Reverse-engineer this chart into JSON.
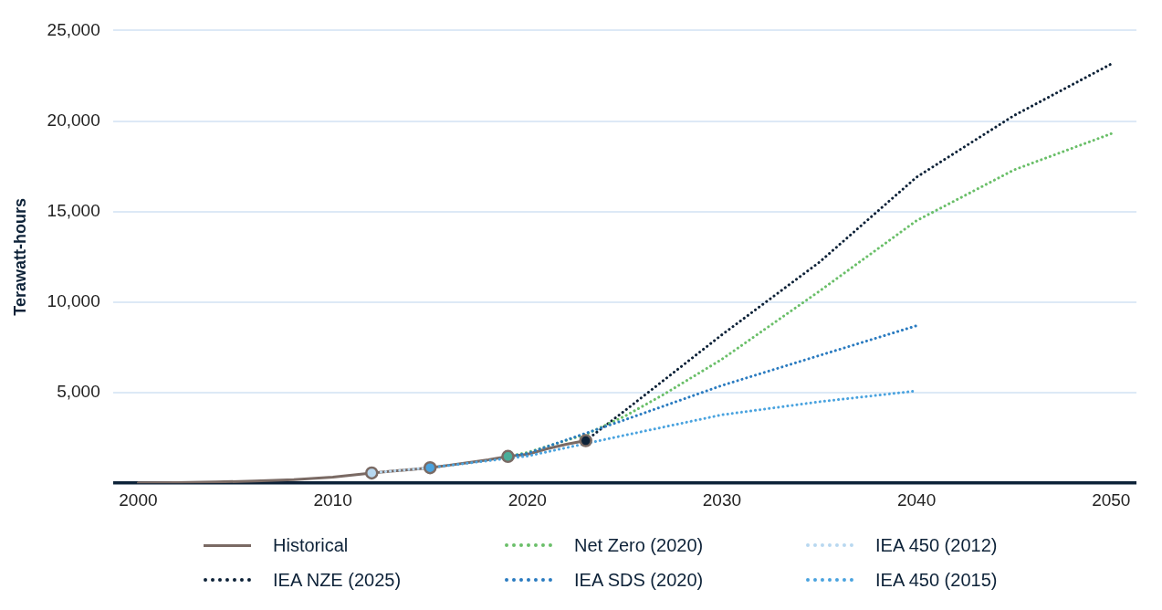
{
  "chart_data": {
    "type": "line",
    "ylabel": "Terawatt-hours",
    "xlim": [
      1998.7,
      2051.3
    ],
    "xticks": [
      2000,
      2010,
      2020,
      2030,
      2040,
      2050
    ],
    "ylim": [
      0,
      25000
    ],
    "yticks": [
      {
        "value": 0,
        "label": null
      },
      {
        "value": 5000,
        "label": "5,000"
      },
      {
        "value": 10000,
        "label": "10,000"
      },
      {
        "value": 15000,
        "label": "15,000"
      },
      {
        "value": 20000,
        "label": "20,000"
      },
      {
        "value": 25000,
        "label": "25,000"
      }
    ],
    "grid": "y",
    "legend": "bottom",
    "series": [
      {
        "name": "Historical",
        "color": "#7a6a64",
        "line_style": "solid",
        "x": [
          2000,
          2002,
          2004,
          2006,
          2008,
          2010,
          2012,
          2013,
          2014,
          2015,
          2016,
          2017,
          2018,
          2019,
          2020,
          2021,
          2022,
          2023
        ],
        "values": [
          20,
          40,
          70,
          120,
          200,
          340,
          570,
          660,
          750,
          860,
          1000,
          1150,
          1300,
          1480,
          1600,
          1900,
          2150,
          2350
        ]
      },
      {
        "name": "IEA NZE (2025)",
        "color": "#0d2238",
        "line_style": "dotted",
        "x": [
          2023,
          2025,
          2030,
          2035,
          2040,
          2045,
          2050
        ],
        "values": [
          2350,
          4000,
          8200,
          12200,
          16900,
          20300,
          23150
        ]
      },
      {
        "name": "Net Zero (2020)",
        "color": "#6abf69",
        "line_style": "dotted",
        "x": [
          2019,
          2020,
          2023,
          2025,
          2027,
          2030,
          2033,
          2035,
          2040,
          2045,
          2050
        ],
        "values": [
          1480,
          1700,
          2700,
          3700,
          4900,
          6850,
          9100,
          10600,
          14500,
          17300,
          19300
        ]
      },
      {
        "name": "IEA SDS (2020)",
        "color": "#2a7bc0",
        "line_style": "dotted",
        "x": [
          2019,
          2020,
          2025,
          2030,
          2035,
          2040
        ],
        "values": [
          1480,
          1650,
          3500,
          5400,
          7050,
          8700
        ]
      },
      {
        "name": "IEA 450 (2012)",
        "color": "#b8d8f0",
        "line_style": "dotted",
        "x": [
          2012,
          2015
        ],
        "values": [
          570,
          860
        ]
      },
      {
        "name": "IEA 450 (2015)",
        "color": "#4aa3df",
        "line_style": "dotted",
        "x": [
          2015,
          2020,
          2025,
          2030,
          2035,
          2040
        ],
        "values": [
          860,
          1500,
          2650,
          3780,
          4500,
          5100
        ]
      },
      {
        "type": "scatter",
        "marker": "circle",
        "colors": [
          "#b8d8f0",
          "#4aa3df",
          "#4aae9a",
          "#0d2238"
        ],
        "x": [
          2012,
          2015,
          2019,
          2023
        ],
        "values": [
          570,
          860,
          1480,
          2350
        ]
      }
    ]
  }
}
